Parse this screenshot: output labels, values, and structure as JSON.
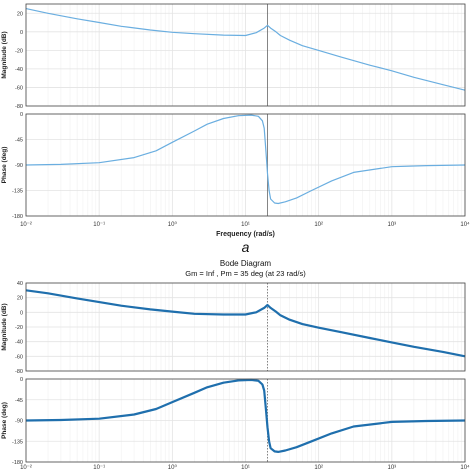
{
  "chart_data": [
    {
      "type": "line",
      "panel_label": "a",
      "title": "",
      "xlabel": "Frequency  (rad/s)",
      "xscale": "log",
      "xlim": [
        0.01,
        10000
      ],
      "x_tick_labels": [
        "10⁻²",
        "10⁻¹",
        "10⁰",
        "10¹",
        "10²",
        "10³",
        "10⁴"
      ],
      "line_color": "#6aaee0",
      "grid": true,
      "crossover_freq": 20,
      "subplots": [
        {
          "name": "magnitude",
          "ylabel": "Magnitude (dB)",
          "ylim": [
            -80,
            30
          ],
          "y_ticks": [
            20,
            0,
            -20,
            -40,
            -60,
            -80
          ],
          "x": [
            0.01,
            0.02,
            0.05,
            0.1,
            0.2,
            0.5,
            1,
            2,
            5,
            10,
            14,
            18,
            20,
            22,
            26,
            30,
            40,
            60,
            100,
            200,
            500,
            1000,
            2000,
            5000,
            10000
          ],
          "values": [
            25,
            20,
            14,
            10,
            6,
            2,
            -0.5,
            -2,
            -3.5,
            -4,
            -1,
            4,
            7,
            4,
            0,
            -4,
            -9,
            -15,
            -20,
            -27,
            -36,
            -42,
            -49,
            -57,
            -63
          ]
        },
        {
          "name": "phase",
          "ylabel": "Phase (deg)",
          "ylim": [
            -180,
            0
          ],
          "y_ticks": [
            0,
            -45,
            -90,
            -135,
            -180
          ],
          "x": [
            0.01,
            0.03,
            0.1,
            0.3,
            0.6,
            1,
            2,
            3,
            5,
            8,
            12,
            15,
            17,
            18,
            19,
            20,
            21,
            22,
            25,
            28,
            35,
            50,
            80,
            150,
            300,
            1000,
            3000,
            10000
          ],
          "values": [
            -90,
            -89,
            -86,
            -77,
            -65,
            -50,
            -30,
            -18,
            -8,
            -3,
            -2,
            -4,
            -12,
            -25,
            -65,
            -105,
            -135,
            -150,
            -157,
            -158,
            -155,
            -148,
            -135,
            -118,
            -103,
            -93,
            -91,
            -90
          ]
        }
      ]
    },
    {
      "type": "line",
      "panel_label": "",
      "title": "Bode Diagram",
      "subtitle": "Gm = Inf ,  Pm = 35 deg (at 23 rad/s)",
      "xlabel": "",
      "xscale": "log",
      "xlim": [
        0.01,
        10000
      ],
      "x_tick_labels": [
        "10⁻²",
        "10⁻¹",
        "10⁰",
        "10¹",
        "10²",
        "10³",
        "10⁴"
      ],
      "line_color": "#1f6fad",
      "grid": true,
      "crossover_freq": 20,
      "subplots": [
        {
          "name": "magnitude",
          "ylabel": "Magnitude (dB)",
          "ylim": [
            -80,
            40
          ],
          "y_ticks": [
            40,
            20,
            0,
            -20,
            -40,
            -60,
            -80
          ],
          "x": [
            0.01,
            0.02,
            0.05,
            0.1,
            0.2,
            0.5,
            1,
            2,
            5,
            10,
            14,
            18,
            20,
            22,
            26,
            30,
            40,
            60,
            100,
            200,
            500,
            1000,
            2000,
            5000,
            10000
          ],
          "values": [
            30,
            26,
            19,
            14,
            9,
            4,
            1,
            -2,
            -3,
            -3,
            0,
            6,
            10,
            6,
            1,
            -4,
            -10,
            -16,
            -21,
            -27,
            -35,
            -41,
            -47,
            -54,
            -60
          ]
        },
        {
          "name": "phase",
          "ylabel": "Phase (deg)",
          "ylim": [
            -180,
            0
          ],
          "y_ticks": [
            0,
            -45,
            -90,
            -135,
            -180
          ],
          "x": [
            0.01,
            0.03,
            0.1,
            0.3,
            0.6,
            1,
            2,
            3,
            5,
            8,
            12,
            15,
            17,
            18,
            19,
            20,
            21,
            22,
            25,
            28,
            35,
            50,
            80,
            150,
            300,
            1000,
            3000,
            10000
          ],
          "values": [
            -90,
            -89,
            -86,
            -77,
            -65,
            -50,
            -30,
            -18,
            -8,
            -3,
            -2,
            -4,
            -12,
            -25,
            -65,
            -105,
            -135,
            -150,
            -157,
            -158,
            -155,
            -148,
            -135,
            -118,
            -103,
            -93,
            -91,
            -90
          ]
        }
      ]
    }
  ]
}
